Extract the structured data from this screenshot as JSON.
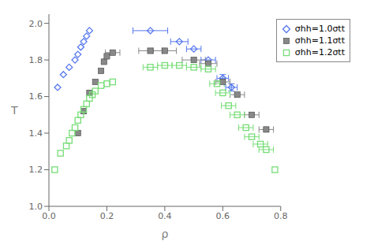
{
  "chart_data": {
    "type": "scatter",
    "xlabel": "ρ",
    "ylabel": "T",
    "xlim": [
      0,
      0.8
    ],
    "ylim": [
      1.0,
      2.05
    ],
    "xticks": [
      {
        "value": 0.0,
        "label": "0.0"
      },
      0.2,
      0.4,
      0.6,
      0.8
    ],
    "yticks": [
      {
        "value": 1.0,
        "label": "1.0"
      },
      1.2,
      1.4,
      1.6,
      1.8,
      {
        "value": 2.0,
        "label": "2.0"
      }
    ],
    "grid": false,
    "legend": "upper right",
    "series": [
      {
        "name": "σhh=1.0σtt",
        "color": "#5577ee",
        "marker": "diamond_open",
        "x": [
          0.03,
          0.05,
          0.07,
          0.09,
          0.1,
          0.11,
          0.12,
          0.13,
          0.14,
          0.35,
          0.45,
          0.5,
          0.55,
          0.6,
          0.63
        ],
        "y": [
          1.65,
          1.72,
          1.76,
          1.8,
          1.83,
          1.87,
          1.9,
          1.93,
          1.96,
          1.96,
          1.9,
          1.86,
          1.8,
          1.7,
          1.65
        ],
        "xerr": [
          0.0,
          0.0,
          0.0,
          0.0,
          0.0,
          0.0,
          0.0,
          0.0,
          0.0,
          0.06,
          0.03,
          0.025,
          0.025,
          0.02,
          0.02
        ],
        "yerr": [
          0.0,
          0.0,
          0.0,
          0.0,
          0.0,
          0.0,
          0.0,
          0.0,
          0.0,
          0.0,
          0.0,
          0.0,
          0.0,
          0.02,
          0.02
        ]
      },
      {
        "name": "σhh=1.1σtt",
        "color": "#888888",
        "marker": "square",
        "x": [
          0.1,
          0.12,
          0.14,
          0.16,
          0.18,
          0.19,
          0.2,
          0.22,
          0.35,
          0.4,
          0.5,
          0.55,
          0.6,
          0.65,
          0.7,
          0.75
        ],
        "y": [
          1.4,
          1.52,
          1.62,
          1.68,
          1.74,
          1.79,
          1.82,
          1.84,
          1.85,
          1.85,
          1.8,
          1.78,
          1.68,
          1.61,
          1.5,
          1.42
        ],
        "xerr": [
          0.0,
          0.0,
          0.0,
          0.0,
          0.0,
          0.0,
          0.0,
          0.025,
          0.04,
          0.04,
          0.04,
          0.03,
          0.025,
          0.025,
          0.025,
          0.025
        ],
        "yerr": [
          0.0,
          0.0,
          0.0,
          0.0,
          0.0,
          0.0,
          0.0,
          0.0,
          0.0,
          0.0,
          0.0,
          0.0,
          0.0,
          0.0,
          0.0,
          0.0
        ]
      },
      {
        "name": "σhh=1.2σtt",
        "color": "#77dd77",
        "marker": "square_open",
        "x": [
          0.02,
          0.04,
          0.06,
          0.07,
          0.08,
          0.09,
          0.1,
          0.11,
          0.12,
          0.13,
          0.14,
          0.15,
          0.16,
          0.18,
          0.2,
          0.22,
          0.35,
          0.4,
          0.45,
          0.5,
          0.55,
          0.58,
          0.6,
          0.62,
          0.65,
          0.68,
          0.7,
          0.73,
          0.75,
          0.78
        ],
        "y": [
          1.2,
          1.29,
          1.33,
          1.36,
          1.4,
          1.43,
          1.47,
          1.5,
          1.53,
          1.56,
          1.59,
          1.61,
          1.63,
          1.66,
          1.67,
          1.68,
          1.76,
          1.77,
          1.77,
          1.76,
          1.75,
          1.67,
          1.62,
          1.55,
          1.5,
          1.43,
          1.38,
          1.34,
          1.31,
          1.2
        ],
        "xerr": [
          0.0,
          0.0,
          0.0,
          0.0,
          0.0,
          0.0,
          0.0,
          0.0,
          0.0,
          0.0,
          0.0,
          0.0,
          0.0,
          0.0,
          0.0,
          0.0,
          0.025,
          0.025,
          0.025,
          0.025,
          0.025,
          0.025,
          0.025,
          0.025,
          0.025,
          0.025,
          0.025,
          0.025,
          0.025,
          0.0
        ],
        "yerr": [
          0.0,
          0.0,
          0.0,
          0.0,
          0.0,
          0.0,
          0.0,
          0.0,
          0.0,
          0.0,
          0.0,
          0.0,
          0.0,
          0.0,
          0.0,
          0.0,
          0.0,
          0.0,
          0.0,
          0.0,
          0.0,
          0.0,
          0.0,
          0.0,
          0.0,
          0.0,
          0.0,
          0.0,
          0.0,
          0.0
        ]
      }
    ]
  }
}
